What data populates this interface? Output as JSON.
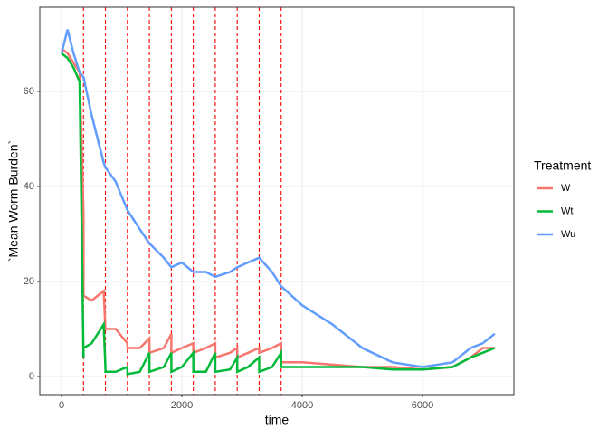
{
  "chart_data": {
    "type": "line",
    "x_label": "time",
    "y_label": "`Mean Worm Burden`",
    "legend_title": "Treatment",
    "legend_position": "right",
    "x": [
      0,
      100,
      200,
      300,
      365,
      366,
      500,
      700,
      730,
      731,
      900,
      1095,
      1096,
      1300,
      1460,
      1461,
      1700,
      1825,
      1826,
      2000,
      2190,
      2191,
      2400,
      2555,
      2556,
      2800,
      2920,
      2921,
      3100,
      3285,
      3286,
      3500,
      3650,
      3651,
      4000,
      4500,
      5000,
      5500,
      6000,
      6500,
      6800,
      7000,
      7200
    ],
    "series": [
      {
        "name": "W",
        "color": "#f8766d",
        "values": [
          69,
          68,
          66,
          64,
          34,
          17,
          16,
          18,
          10,
          10,
          10,
          7,
          6,
          6,
          8,
          5,
          6,
          9,
          5,
          6,
          7,
          5,
          6,
          7,
          4,
          5,
          6,
          4,
          5,
          6,
          5,
          6,
          7,
          3,
          3,
          2.5,
          2,
          2,
          1.5,
          2,
          4,
          6,
          6
        ]
      },
      {
        "name": "Wt",
        "color": "#00ba38",
        "values": [
          68,
          67,
          65,
          62,
          4,
          6,
          7,
          11,
          2,
          1,
          1,
          2,
          0.5,
          1,
          5,
          1,
          2,
          5,
          1,
          2,
          5,
          1,
          1,
          5,
          1,
          1.5,
          4,
          1,
          2,
          4,
          1,
          2,
          5,
          2,
          2,
          2,
          2,
          1.5,
          1.5,
          2,
          4,
          5,
          6
        ]
      },
      {
        "name": "Wu",
        "color": "#619cff",
        "values": [
          68,
          73,
          68,
          64,
          63,
          63,
          55,
          45,
          44,
          44,
          41,
          35,
          35,
          31,
          28,
          28,
          25,
          23,
          23,
          24,
          22,
          22,
          22,
          21,
          21,
          22,
          23,
          23,
          24,
          25,
          25,
          22,
          19,
          19,
          15,
          11,
          6,
          3,
          2,
          3,
          6,
          7,
          9
        ]
      }
    ],
    "vlines": [
      365,
      730,
      1095,
      1460,
      1825,
      2190,
      2555,
      2920,
      3285,
      3650
    ],
    "vline_color": "#ff0000",
    "xlim": [
      -361,
      7519
    ],
    "ylim": [
      -3.8,
      77.7
    ],
    "xticks": [
      0,
      2000,
      4000,
      6000
    ],
    "yticks": [
      0,
      20,
      40,
      60
    ],
    "grid": true
  }
}
